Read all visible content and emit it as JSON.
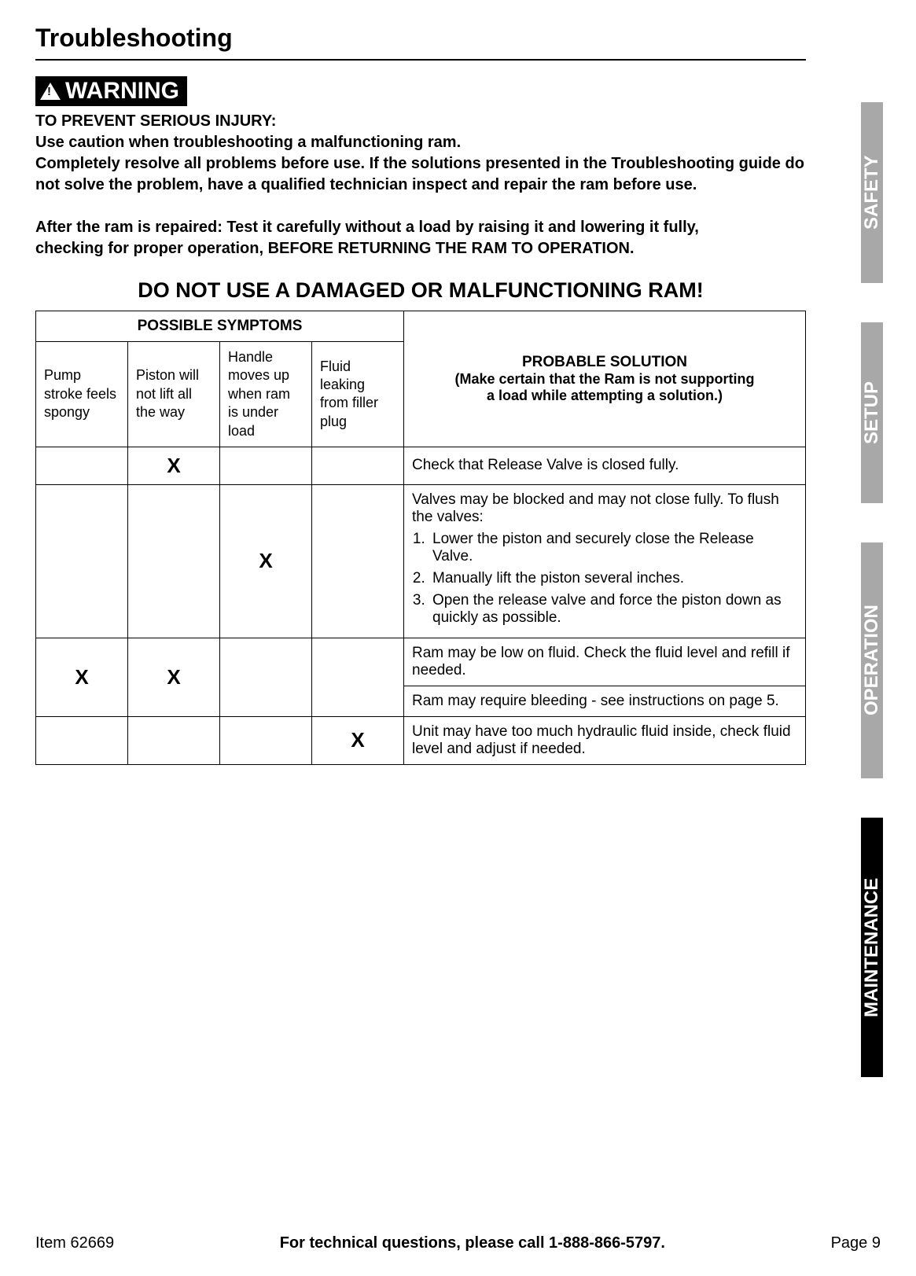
{
  "section_title": "Troubleshooting",
  "warning_label": "WARNING",
  "warning_body": "TO PREVENT SERIOUS INJURY:\nUse caution when troubleshooting a malfunctioning ram.\nCompletely resolve all problems before use.  If the solutions presented in the Troubleshooting guide do not solve the problem, have a qualified technician inspect and repair the ram before use.\n\nAfter the ram is repaired:  Test it carefully without a load by raising it and lowering it fully,\nchecking for proper operation, BEFORE RETURNING THE RAM TO OPERATION.",
  "do_not_use": "DO NOT USE A DAMAGED OR MALFUNCTIONING RAM!",
  "table": {
    "symptoms_header": "POSSIBLE SYMPTOMS",
    "solution_header_title": "PROBABLE SOLUTION",
    "solution_header_sub": "(Make certain that the Ram is not supporting\na load while attempting a solution.)",
    "symptom_cols": [
      "Pump stroke feels spongy",
      "Piston will not lift all the way",
      "Handle moves up when ram is under load",
      "Fluid leaking from filler plug"
    ],
    "rows": [
      {
        "marks": [
          "",
          "X",
          "",
          ""
        ],
        "solutions": [
          "Check that Release Valve is closed fully."
        ]
      },
      {
        "marks": [
          "",
          "",
          "X",
          ""
        ],
        "solutions": [
          {
            "lead": "Valves may be blocked and may not close fully.  To flush the valves:",
            "steps": [
              "Lower the piston and securely close the Release Valve.",
              "Manually lift the piston several inches.",
              "Open the release valve and force the piston down as quickly as possible."
            ]
          }
        ]
      },
      {
        "marks": [
          "X",
          "X",
          "",
          ""
        ],
        "solutions": [
          "Ram may be low on fluid.  Check the fluid level and refill if needed.",
          "Ram may require bleeding - see instructions on page 5."
        ]
      },
      {
        "marks": [
          "",
          "",
          "",
          "X"
        ],
        "solutions": [
          "Unit may have too much hydraulic fluid inside, check fluid level and adjust if needed."
        ]
      }
    ]
  },
  "tabs": {
    "safety": "SAFETY",
    "setup": "SETUP",
    "operation": "OPERATION",
    "maintenance": "MAINTENANCE"
  },
  "footer": {
    "item": "Item 62669",
    "center": "For technical questions, please call 1-888-866-5797.",
    "page": "Page 9"
  },
  "colors": {
    "tab_gray": "#a8a8a8",
    "tab_black": "#000000",
    "text": "#000000",
    "bg": "#ffffff"
  }
}
